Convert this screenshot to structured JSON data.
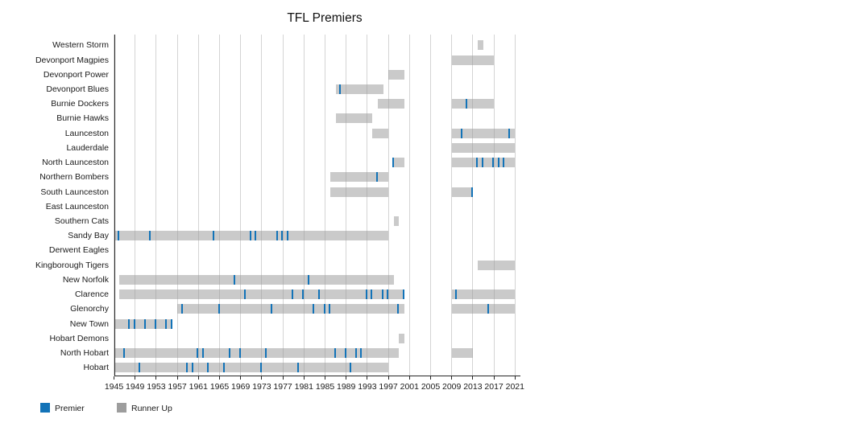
{
  "chart_data": {
    "type": "gantt",
    "title": "TFL Premiers",
    "xlabel": "",
    "ylabel": "",
    "x_range": [
      1945,
      2021
    ],
    "x_ticks": [
      1945,
      1949,
      1953,
      1957,
      1961,
      1965,
      1969,
      1973,
      1977,
      1981,
      1985,
      1989,
      1993,
      1997,
      2001,
      2005,
      2009,
      2013,
      2017,
      2021
    ],
    "grid": "vertical",
    "legend_position": "bottom-left",
    "legend": [
      {
        "key": "premier",
        "label": "Premier"
      },
      {
        "key": "runner_up",
        "label": "Runner Up"
      }
    ],
    "colors": {
      "premier": "#1273b8",
      "runner_up_bar": "rgba(150,150,150,0.5)",
      "legend_runner_swatch": "#9d9d9d",
      "gridline": "#d4d4d4",
      "axis": "#262626"
    },
    "teams": [
      {
        "name": "Western Storm",
        "runner_up_spans": [
          [
            2014,
            2015
          ]
        ],
        "premier_years": []
      },
      {
        "name": "Devonport Magpies",
        "runner_up_spans": [
          [
            2009,
            2017
          ]
        ],
        "premier_years": []
      },
      {
        "name": "Devonport Power",
        "runner_up_spans": [
          [
            1997,
            2000
          ]
        ],
        "premier_years": []
      },
      {
        "name": "Devonport Blues",
        "runner_up_spans": [
          [
            1987,
            1996
          ]
        ],
        "premier_years": [
          1988
        ]
      },
      {
        "name": "Burnie Dockers",
        "runner_up_spans": [
          [
            1995,
            2000
          ],
          [
            2009,
            2017
          ]
        ],
        "premier_years": [
          2012
        ]
      },
      {
        "name": "Burnie Hawks",
        "runner_up_spans": [
          [
            1987,
            1994
          ]
        ],
        "premier_years": []
      },
      {
        "name": "Launceston",
        "runner_up_spans": [
          [
            1994,
            1997
          ],
          [
            2009,
            2021
          ]
        ],
        "premier_years": [
          2011,
          2020
        ]
      },
      {
        "name": "Lauderdale",
        "runner_up_spans": [
          [
            2009,
            2021
          ]
        ],
        "premier_years": []
      },
      {
        "name": "North Launceston",
        "runner_up_spans": [
          [
            1998,
            2000
          ],
          [
            2009,
            2021
          ]
        ],
        "premier_years": [
          1998,
          2014,
          2015,
          2017,
          2018,
          2019
        ]
      },
      {
        "name": "Northern Bombers",
        "runner_up_spans": [
          [
            1986,
            1997
          ]
        ],
        "premier_years": [
          1995
        ]
      },
      {
        "name": "South Launceston",
        "runner_up_spans": [
          [
            1986,
            1997
          ],
          [
            2009,
            2013
          ]
        ],
        "premier_years": [
          2013
        ]
      },
      {
        "name": "East Launceston",
        "runner_up_spans": [],
        "premier_years": []
      },
      {
        "name": "Southern Cats",
        "runner_up_spans": [
          [
            1998,
            1999
          ]
        ],
        "premier_years": []
      },
      {
        "name": "Sandy Bay",
        "runner_up_spans": [
          [
            1945,
            1997
          ]
        ],
        "premier_years": [
          1946,
          1952,
          1964,
          1971,
          1972,
          1976,
          1977,
          1978
        ]
      },
      {
        "name": "Derwent Eagles",
        "runner_up_spans": [],
        "premier_years": []
      },
      {
        "name": "Kingborough Tigers",
        "runner_up_spans": [
          [
            2014,
            2021
          ]
        ],
        "premier_years": []
      },
      {
        "name": "New Norfolk",
        "runner_up_spans": [
          [
            1946,
            1998
          ]
        ],
        "premier_years": [
          1968,
          1982
        ]
      },
      {
        "name": "Clarence",
        "runner_up_spans": [
          [
            1946,
            2000
          ],
          [
            2009,
            2021
          ]
        ],
        "premier_years": [
          1970,
          1979,
          1981,
          1984,
          1993,
          1994,
          1996,
          1997,
          2000,
          2010
        ]
      },
      {
        "name": "Glenorchy",
        "runner_up_spans": [
          [
            1957,
            2000
          ],
          [
            2009,
            2021
          ]
        ],
        "premier_years": [
          1958,
          1965,
          1975,
          1983,
          1985,
          1986,
          1999,
          2016
        ]
      },
      {
        "name": "New Town",
        "runner_up_spans": [
          [
            1945,
            1956
          ]
        ],
        "premier_years": [
          1948,
          1949,
          1951,
          1953,
          1955,
          1956
        ]
      },
      {
        "name": "Hobart Demons",
        "runner_up_spans": [
          [
            1999,
            2000
          ]
        ],
        "premier_years": []
      },
      {
        "name": "North Hobart",
        "runner_up_spans": [
          [
            1945,
            1999
          ],
          [
            2009,
            2013
          ]
        ],
        "premier_years": [
          1947,
          1961,
          1962,
          1967,
          1969,
          1974,
          1987,
          1989,
          1991,
          1992
        ]
      },
      {
        "name": "Hobart",
        "runner_up_spans": [
          [
            1945,
            1997
          ]
        ],
        "premier_years": [
          1950,
          1959,
          1960,
          1963,
          1966,
          1973,
          1980,
          1990
        ]
      }
    ]
  }
}
